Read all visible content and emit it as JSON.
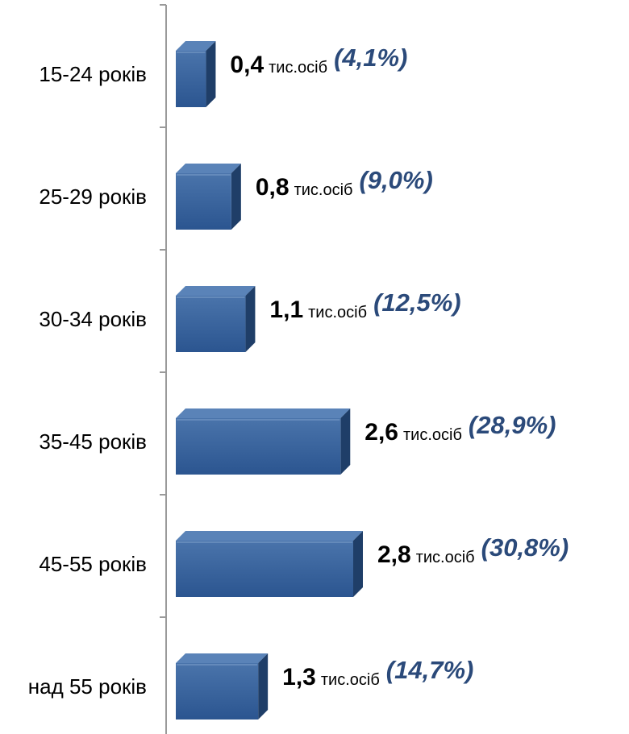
{
  "chart_data": {
    "type": "bar",
    "orientation": "horizontal",
    "categories": [
      "15-24 років",
      "25-29 років",
      "30-34 років",
      "35-45 років",
      "45-55 років",
      "над 55 років"
    ],
    "values": [
      0.4,
      0.8,
      1.1,
      2.6,
      2.8,
      1.3
    ],
    "value_labels": [
      "0,4",
      "0,8",
      "1,1",
      "2,6",
      "2,8",
      "1,3"
    ],
    "unit": "тис.осіб",
    "percent_labels": [
      "(4,1%)",
      "(9,0%)",
      "(12,5%)",
      "(28,9%)",
      "(30,8%)",
      "(14,7%)"
    ],
    "title": "",
    "xlabel": "",
    "ylabel": "",
    "grid": false,
    "legend": "none",
    "colors": {
      "bar_front": "#33619a",
      "bar_top": "#5a83b8",
      "bar_side": "#1f3e68",
      "bar_highlight": "#7699c6",
      "percent_text": "#2b4a7a",
      "axis": "#9a9a9a"
    }
  }
}
